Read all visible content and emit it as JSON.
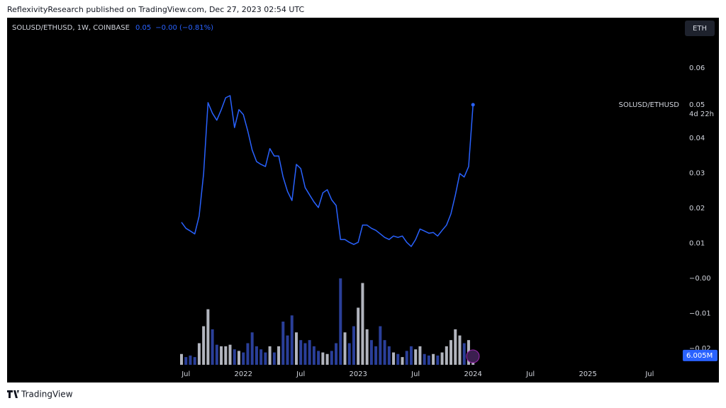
{
  "chart_data": {
    "type": "line",
    "publisher_line": "ReflexivityResearch published on TradingView.com, Dec 27, 2023 02:54 UTC",
    "symbol": "SOLUSD/ETHUSD, 1W, COINBASE",
    "last": "0.05",
    "change": "−0.00 (−0.81%)",
    "currency_button": "ETH",
    "price_label": {
      "name": "SOLUSD/ETHUSD",
      "value": "0.05",
      "countdown": "4d 22h"
    },
    "footer": "TradingView",
    "color": "#2962ff",
    "categories": [
      null,
      "Jul",
      null,
      null,
      null,
      null,
      null,
      null,
      null,
      null,
      null,
      null,
      null,
      null,
      "2022",
      null,
      null,
      null,
      null,
      null,
      null,
      null,
      null,
      null,
      null,
      null,
      null,
      "Jul",
      null,
      null,
      null,
      null,
      null,
      null,
      null,
      null,
      null,
      null,
      null,
      null,
      "2023",
      null,
      null,
      null,
      null,
      null,
      null,
      null,
      null,
      null,
      null,
      null,
      null,
      "Jul",
      null,
      null,
      null,
      null,
      null,
      null,
      null,
      null,
      null,
      null,
      null,
      null,
      "2024",
      null,
      null,
      null,
      null,
      null,
      null,
      null,
      null,
      null,
      null,
      null,
      null,
      "Jul",
      null,
      null,
      null,
      null,
      null,
      null,
      null,
      null,
      null,
      null,
      null,
      null,
      "2025",
      null,
      null,
      null,
      null,
      null,
      null,
      null,
      null,
      null,
      null,
      null,
      null,
      null,
      "Jul",
      null,
      null,
      null,
      null,
      null,
      null,
      null
    ],
    "values": [
      0.016,
      0.0143,
      0.0135,
      0.0127,
      0.0178,
      0.0299,
      0.0501,
      0.0471,
      0.0451,
      0.0481,
      0.0515,
      0.0521,
      0.043,
      0.0481,
      0.0467,
      0.042,
      0.0366,
      0.0333,
      0.0325,
      0.0319,
      0.037,
      0.0349,
      0.0349,
      0.0289,
      0.0248,
      0.0222,
      0.0325,
      0.0313,
      0.0259,
      0.0238,
      0.0218,
      0.0202,
      0.0244,
      0.0253,
      0.0224,
      0.0208,
      0.0111,
      0.0111,
      0.0103,
      0.0097,
      0.0103,
      0.0152,
      0.0152,
      0.0143,
      0.0137,
      0.0127,
      0.0117,
      0.0111,
      0.0121,
      0.0117,
      0.0121,
      0.0103,
      0.0091,
      0.0111,
      0.0141,
      0.0135,
      0.0129,
      0.0131,
      0.0121,
      0.0137,
      0.0152,
      0.0184,
      0.0238,
      0.0299,
      0.0289,
      0.0319,
      0.0495,
      null,
      null,
      null,
      null,
      null,
      null,
      null,
      null,
      null,
      null,
      null,
      null,
      null,
      null,
      null,
      null,
      null,
      null,
      null,
      null,
      null,
      null,
      null,
      null,
      null,
      null,
      null,
      null,
      null,
      null,
      null,
      null,
      null,
      null,
      null,
      null,
      null,
      null,
      null,
      null,
      null,
      null,
      null,
      null,
      null,
      null,
      null
    ],
    "volume": {
      "values": [
        7,
        5,
        6,
        5,
        14,
        25,
        36,
        23,
        13,
        12,
        12,
        13,
        10,
        9,
        8,
        14,
        21,
        12,
        10,
        8,
        12,
        8,
        12,
        28,
        19,
        32,
        21,
        16,
        14,
        16,
        12,
        9,
        8,
        7,
        9,
        14,
        56,
        21,
        14,
        25,
        37,
        53,
        23,
        16,
        12,
        25,
        16,
        12,
        8,
        7,
        5,
        9,
        12,
        10,
        12,
        7,
        6,
        7,
        6,
        8,
        12,
        16,
        23,
        19,
        14,
        16,
        6.005,
        null,
        null,
        null,
        null,
        null,
        null,
        null,
        null,
        null,
        null,
        null,
        null,
        null,
        null,
        null,
        null,
        null,
        null,
        null,
        null,
        null,
        null,
        null,
        null,
        null,
        null,
        null,
        null,
        null,
        null,
        null,
        null,
        null,
        null,
        null,
        null,
        null,
        null,
        null,
        null,
        null,
        null,
        null,
        null,
        null,
        null,
        null
      ],
      "last_label": "6.005M",
      "up_color": "#b2b5be",
      "down_color": "#2a3f99"
    },
    "ylim": [
      -0.0246,
      0.0743
    ],
    "yticks": [
      0.06,
      0.04,
      0.03,
      0.02,
      0.01,
      {
        "value": 0,
        "label": "−0.00"
      },
      {
        "value": -0.01,
        "label": "−0.01"
      },
      {
        "value": -0.02,
        "label": "−0.02"
      }
    ]
  }
}
